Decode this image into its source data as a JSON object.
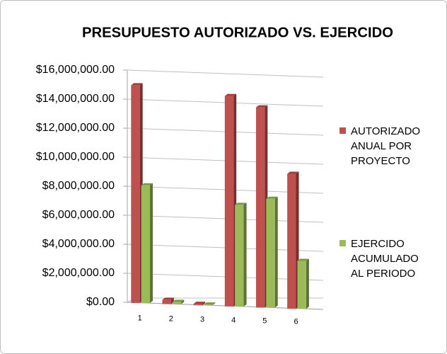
{
  "chart_data": {
    "type": "bar",
    "title": "PRESUPUESTO AUTORIZADO VS. EJERCIDO",
    "categories": [
      "1",
      "2",
      "3",
      "4",
      "5",
      "6"
    ],
    "series": [
      {
        "name": "AUTORIZADO ANUAL POR PROYECTO",
        "color": "#c0504d",
        "values": [
          15000000,
          300000,
          100000,
          14500000,
          13800000,
          9300000
        ]
      },
      {
        "name": "EJERCIDO ACUMULADO AL PERIODO",
        "color": "#9bbb59",
        "values": [
          8100000,
          150000,
          50000,
          7000000,
          7500000,
          3300000
        ]
      }
    ],
    "ylim": [
      0,
      16000000
    ],
    "yticks": [
      {
        "value": 0,
        "label": "$0.00"
      },
      {
        "value": 2000000,
        "label": "$2,000,000.00"
      },
      {
        "value": 4000000,
        "label": "$4,000,000.00"
      },
      {
        "value": 6000000,
        "label": "$6,000,000.00"
      },
      {
        "value": 8000000,
        "label": "$8,000,000.00"
      },
      {
        "value": 10000000,
        "label": "$10,000,000.00"
      },
      {
        "value": 12000000,
        "label": "$12,000,000.00"
      },
      {
        "value": 14000000,
        "label": "$14,000,000.00"
      },
      {
        "value": 16000000,
        "label": "$16,000,000.00"
      }
    ],
    "grid": true,
    "legend": "right"
  }
}
